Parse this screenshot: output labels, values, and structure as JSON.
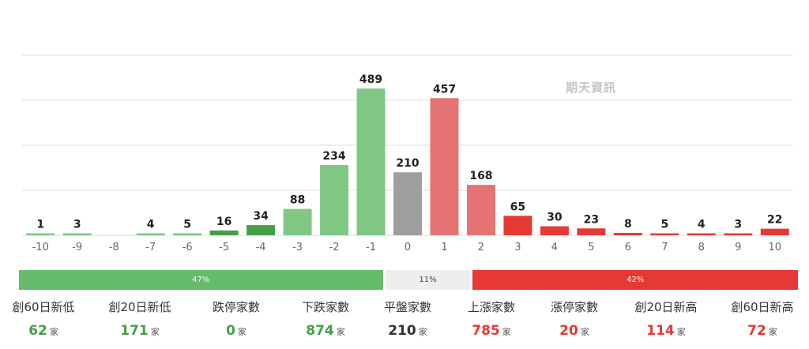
{
  "watermark": "期天資訊",
  "colors": {
    "dark_green": "#43a047",
    "light_green": "#81c784",
    "gray": "#9e9e9e",
    "light_red": "#e57373",
    "red": "#e53935",
    "grid": "#dddddd"
  },
  "chart_data": {
    "type": "bar",
    "categories": [
      "-10",
      "-9",
      "-8",
      "-7",
      "-6",
      "-5",
      "-4",
      "-3",
      "-2",
      "-1",
      "0",
      "1",
      "2",
      "3",
      "4",
      "5",
      "6",
      "7",
      "8",
      "9",
      "10"
    ],
    "values": [
      1,
      3,
      null,
      4,
      5,
      16,
      34,
      88,
      234,
      489,
      210,
      457,
      168,
      65,
      30,
      23,
      8,
      5,
      4,
      3,
      22
    ],
    "bar_colors": [
      "light_green",
      "light_green",
      "light_green",
      "light_green",
      "light_green",
      "dark_green",
      "dark_green",
      "light_green",
      "light_green",
      "light_green",
      "gray",
      "light_red",
      "light_red",
      "red",
      "red",
      "red",
      "red",
      "red",
      "red",
      "red",
      "red"
    ],
    "ylim": [
      0,
      600
    ],
    "grid": true,
    "title": "",
    "xlabel": "",
    "ylabel": ""
  },
  "ratio": {
    "down": {
      "label": "47%",
      "value": 47
    },
    "flat": {
      "label": "11%",
      "value": 11
    },
    "up": {
      "label": "42%",
      "value": 42
    }
  },
  "stats": [
    {
      "label": "創60日新低",
      "value": "62",
      "unit": "家",
      "color": "#43a047"
    },
    {
      "label": "創20日新低",
      "value": "171",
      "unit": "家",
      "color": "#43a047"
    },
    {
      "label": "跌停家數",
      "value": "0",
      "unit": "家",
      "color": "#43a047"
    },
    {
      "label": "下跌家數",
      "value": "874",
      "unit": "家",
      "color": "#43a047"
    },
    {
      "label": "平盤家數",
      "value": "210",
      "unit": "家",
      "color": "#333333"
    },
    {
      "label": "上漲家數",
      "value": "785",
      "unit": "家",
      "color": "#e53935"
    },
    {
      "label": "漲停家數",
      "value": "20",
      "unit": "家",
      "color": "#e53935"
    },
    {
      "label": "創20日新高",
      "value": "114",
      "unit": "家",
      "color": "#e53935"
    },
    {
      "label": "創60日新高",
      "value": "72",
      "unit": "家",
      "color": "#e53935"
    }
  ]
}
